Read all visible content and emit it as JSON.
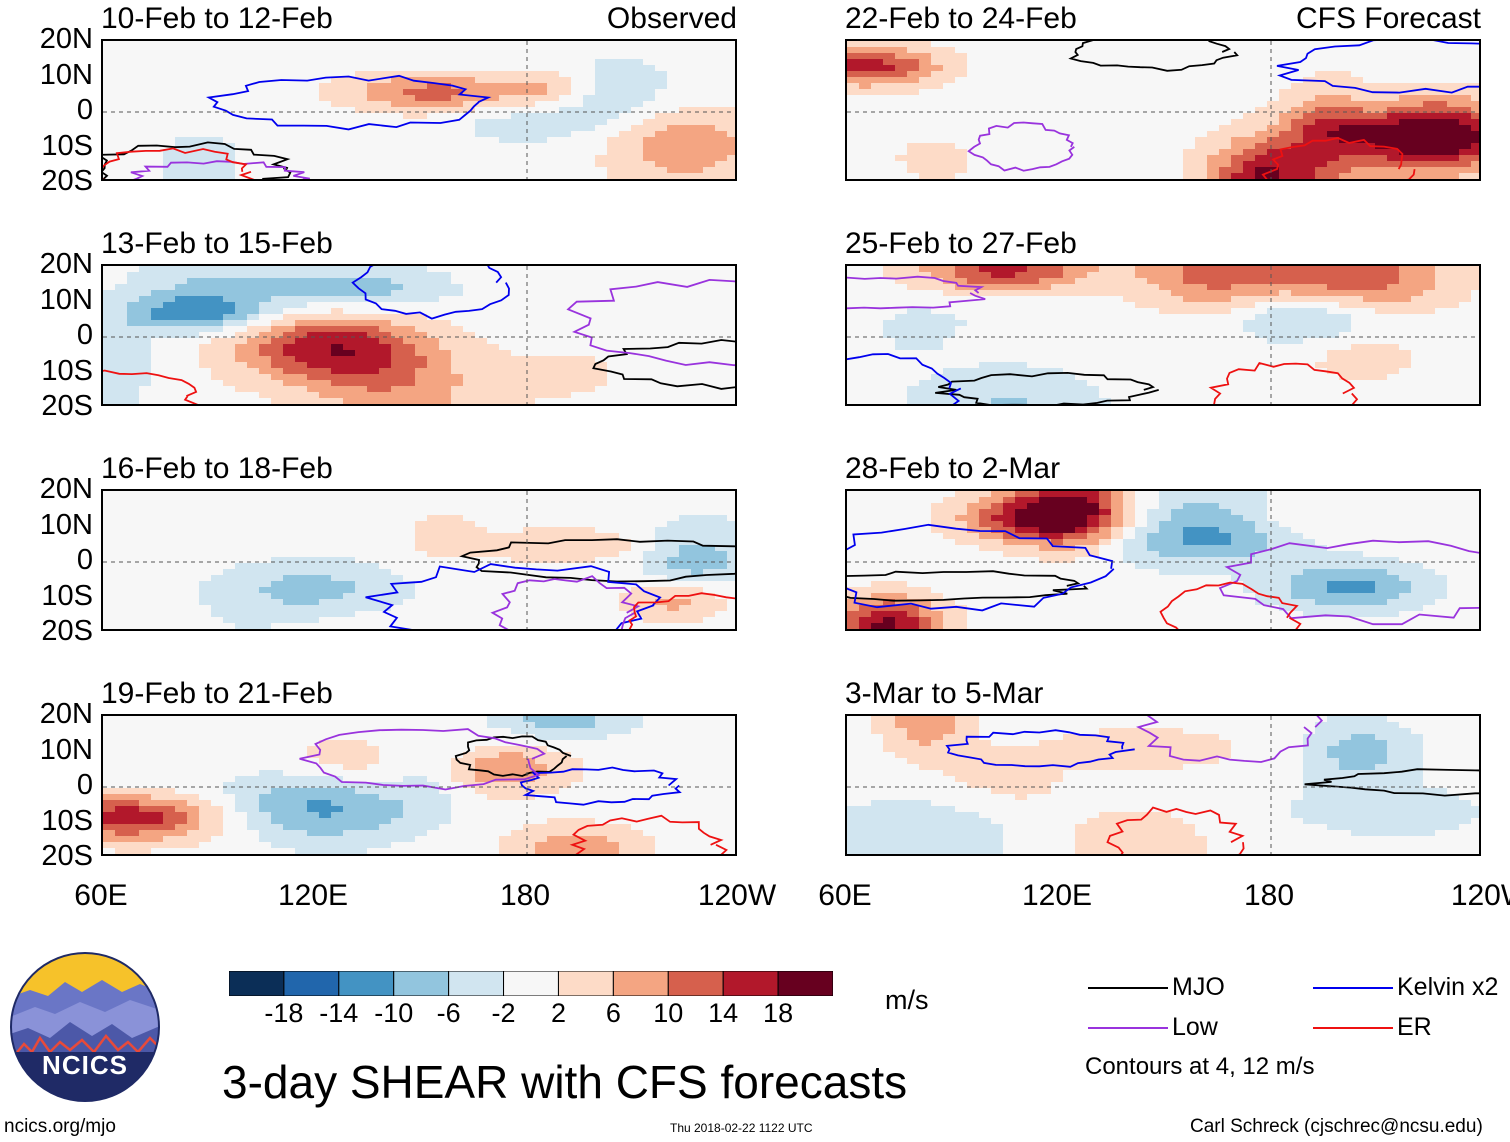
{
  "chart_data": {
    "type": "heatmap",
    "title": "3-day SHEAR with CFS forecasts",
    "units": "m/s",
    "x_axis": {
      "ticks": [
        "60E",
        "120E",
        "180",
        "120W"
      ],
      "range": [
        60,
        240
      ]
    },
    "y_axis": {
      "ticks": [
        "20N",
        "10N",
        "0",
        "10S",
        "20S"
      ],
      "range": [
        -20,
        20
      ]
    },
    "colorbar": {
      "ticks": [
        "-18",
        "-14",
        "-10",
        "-6",
        "-2",
        "2",
        "6",
        "10",
        "14",
        "18"
      ],
      "colors": [
        "#0b2e57",
        "#2166ac",
        "#4393c3",
        "#92c5de",
        "#d1e5f0",
        "#f7f7f7",
        "#fddbc7",
        "#f4a582",
        "#d6604d",
        "#b2182b",
        "#67001f"
      ]
    },
    "panels": [
      {
        "title": "10-Feb to 12-Feb",
        "label": "Observed",
        "column": "observed",
        "seed": 1
      },
      {
        "title": "13-Feb to 15-Feb",
        "label": "",
        "column": "observed",
        "seed": 2
      },
      {
        "title": "16-Feb to 18-Feb",
        "label": "",
        "column": "observed",
        "seed": 3
      },
      {
        "title": "19-Feb to 21-Feb",
        "label": "",
        "column": "observed",
        "seed": 4
      },
      {
        "title": "22-Feb to 24-Feb",
        "label": "CFS Forecast",
        "column": "forecast",
        "seed": 5
      },
      {
        "title": "25-Feb to 27-Feb",
        "label": "",
        "column": "forecast",
        "seed": 6
      },
      {
        "title": "28-Feb to 2-Mar",
        "label": "",
        "column": "forecast",
        "seed": 7
      },
      {
        "title": "3-Mar to 5-Mar",
        "label": "",
        "column": "forecast",
        "seed": 8
      }
    ],
    "contour_legend": [
      {
        "name": "MJO",
        "color": "#000000"
      },
      {
        "name": "Kelvin x2",
        "color": "#0000ee"
      },
      {
        "name": "Low",
        "color": "#9933dd"
      },
      {
        "name": "ER",
        "color": "#ee1111"
      }
    ],
    "contour_note": "Contours at 4, 12 m/s"
  },
  "logo": {
    "text": "NCICS"
  },
  "footer": {
    "website": "ncics.org/mjo",
    "timestamp": "Thu 2018-02-22 1122 UTC",
    "credit": "Carl Schreck (cjschrec@ncsu.edu)"
  }
}
